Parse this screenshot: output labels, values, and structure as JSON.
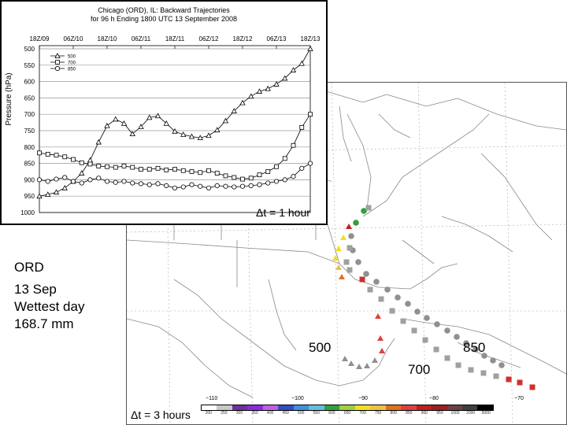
{
  "chart_data": {
    "type": "line",
    "title": "Chicago (ORD), IL: Backward Trajectories",
    "subtitle": "for 96 h Ending 1800 UTC 13 September 2008",
    "ylabel": "Pressure (hPa)",
    "xlabel": "",
    "x_tick_labels": [
      "18Z/09",
      "06Z/10",
      "18Z/10",
      "06Z/11",
      "18Z/11",
      "06Z/12",
      "18Z/12",
      "06Z/13",
      "18Z/13"
    ],
    "y_ticks": [
      500,
      550,
      600,
      650,
      700,
      750,
      800,
      850,
      900,
      950,
      1000
    ],
    "ylim": [
      1000,
      500
    ],
    "y_inverted": true,
    "grid": true,
    "legend_position": "top-left",
    "series": [
      {
        "name": "500",
        "marker": "triangle",
        "x_hours": [
          0,
          3,
          6,
          9,
          12,
          15,
          18,
          21,
          24,
          27,
          30,
          33,
          36,
          39,
          42,
          45,
          48,
          51,
          54,
          57,
          60,
          63,
          66,
          69,
          72,
          75,
          78,
          81,
          84,
          87,
          90,
          93,
          96
        ],
        "values": [
          950,
          945,
          938,
          925,
          905,
          880,
          840,
          785,
          735,
          715,
          728,
          760,
          738,
          710,
          705,
          728,
          752,
          762,
          768,
          772,
          765,
          748,
          720,
          690,
          665,
          645,
          630,
          622,
          608,
          590,
          565,
          545,
          500
        ]
      },
      {
        "name": "700",
        "marker": "square",
        "x_hours": [
          0,
          3,
          6,
          9,
          12,
          15,
          18,
          21,
          24,
          27,
          30,
          33,
          36,
          39,
          42,
          45,
          48,
          51,
          54,
          57,
          60,
          63,
          66,
          69,
          72,
          75,
          78,
          81,
          84,
          87,
          90,
          93,
          96
        ],
        "values": [
          818,
          822,
          825,
          830,
          838,
          848,
          852,
          858,
          860,
          862,
          858,
          862,
          868,
          868,
          865,
          870,
          868,
          872,
          875,
          878,
          872,
          880,
          888,
          893,
          898,
          895,
          885,
          875,
          860,
          835,
          795,
          740,
          700
        ]
      },
      {
        "name": "850",
        "marker": "circle",
        "x_hours": [
          0,
          3,
          6,
          9,
          12,
          15,
          18,
          21,
          24,
          27,
          30,
          33,
          36,
          39,
          42,
          45,
          48,
          51,
          54,
          57,
          60,
          63,
          66,
          69,
          72,
          75,
          78,
          81,
          84,
          87,
          90,
          93,
          96
        ],
        "values": [
          900,
          905,
          898,
          893,
          905,
          910,
          900,
          895,
          905,
          908,
          905,
          910,
          912,
          915,
          912,
          918,
          925,
          922,
          915,
          920,
          925,
          918,
          920,
          922,
          920,
          918,
          915,
          910,
          905,
          900,
          890,
          865,
          850
        ]
      }
    ]
  },
  "map_panel": {
    "colorbar_tick_labels": [
      "200",
      "250",
      "300",
      "350",
      "400",
      "450",
      "500",
      "550",
      "600",
      "650",
      "700",
      "750",
      "800",
      "850",
      "900",
      "950",
      "1000",
      "2000",
      "5000"
    ],
    "colorbar_colors": [
      "#ffffff",
      "#c8c8c8",
      "#7030a0",
      "#8a2be2",
      "#c060e0",
      "#3050c0",
      "#4090e0",
      "#60c0e0",
      "#30a040",
      "#a0d040",
      "#f0e020",
      "#f0c040",
      "#e07020",
      "#e04040",
      "#c02020",
      "#a02020",
      "#704040",
      "#404040",
      "#000000"
    ],
    "scale_labels": [
      "−110",
      "−100",
      "−90",
      "−80",
      "−70"
    ],
    "trajectories": [
      {
        "level": "500",
        "marker": "triangle"
      },
      {
        "level": "700",
        "marker": "square"
      },
      {
        "level": "850",
        "marker": "circle"
      }
    ]
  },
  "annotations": {
    "dt_1h": "Δt = 1 hour",
    "site": "ORD",
    "date": "13 Sep",
    "wettest": "Wettest day",
    "precip": "168.7 mm",
    "level_500": "500",
    "level_700": "700",
    "level_850": "850",
    "dt_3h": "Δt = 3 hours"
  }
}
